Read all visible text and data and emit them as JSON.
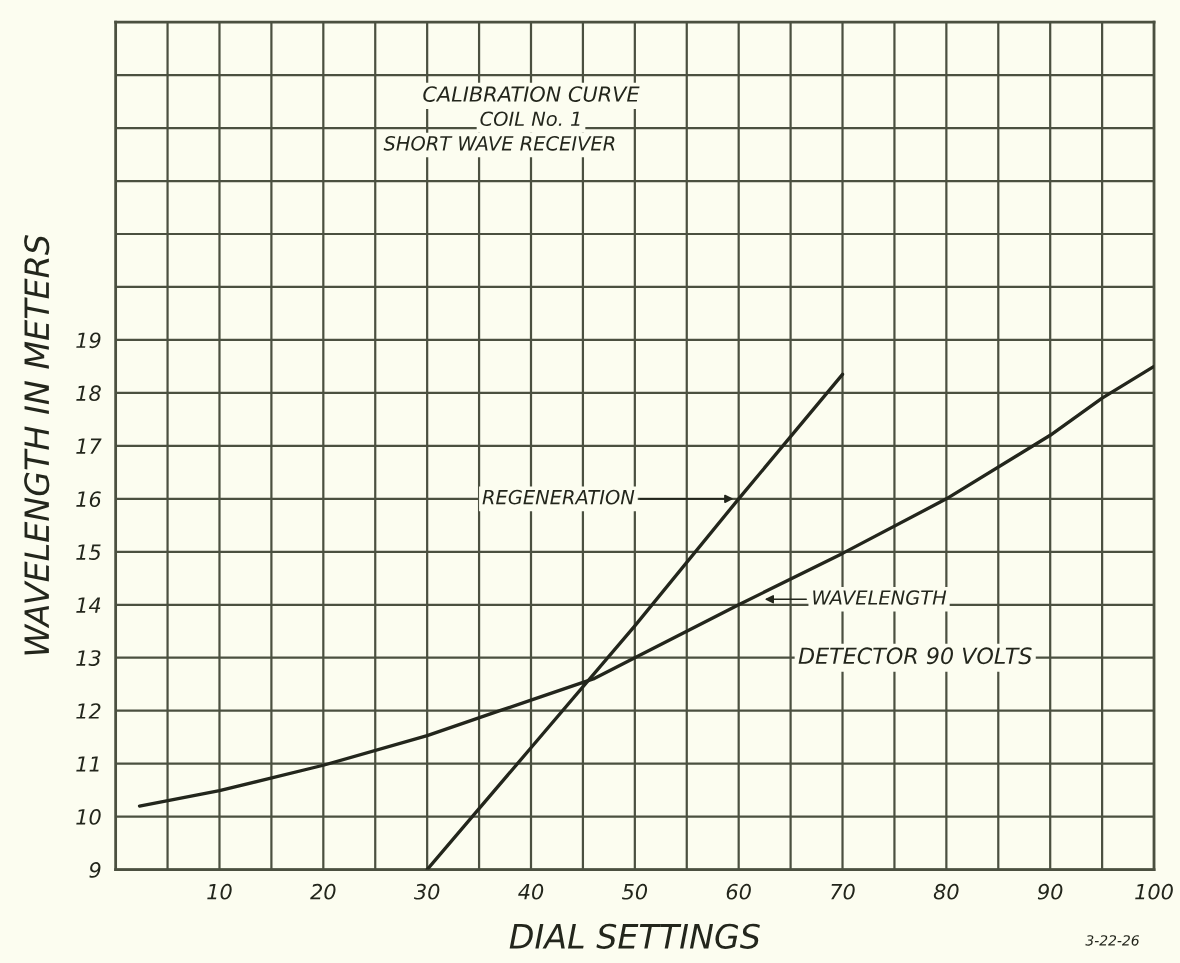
{
  "chart_data": {
    "type": "line",
    "title": "CALIBRATION CURVE",
    "subtitle": "COIL No. 1",
    "xlabel": "DIAL SETTINGS",
    "ylabel": "WAVELENGTH IN METERS",
    "series": [
      {
        "color": "#23261c",
        "x": [
          2.3,
          10,
          20,
          30,
          37,
          40,
          46,
          50,
          60,
          70,
          80,
          90,
          95,
          100
        ],
        "values": [
          10.2,
          10.49,
          10.97,
          11.53,
          12.0,
          12.2,
          12.6,
          13.0,
          14.0,
          14.97,
          16.0,
          17.2,
          17.9,
          18.5
        ]
      },
      {
        "color": "#23261c",
        "x": [
          30,
          35,
          40,
          50,
          60,
          70
        ],
        "values": [
          9,
          10.15,
          11.3,
          13.6,
          16.0,
          18.35
        ]
      }
    ],
    "xlim": [
      0,
      100
    ],
    "ylim": [
      9,
      25
    ],
    "xticks": [
      {
        "value": 5,
        "label": null
      },
      10,
      {
        "value": 15,
        "label": null
      },
      20,
      {
        "value": 25,
        "label": null
      },
      30,
      {
        "value": 35,
        "label": null
      },
      40,
      {
        "value": 45,
        "label": null
      },
      50,
      {
        "value": 55,
        "label": null
      },
      60,
      {
        "value": 65,
        "label": null
      },
      70,
      {
        "value": 75,
        "label": null
      },
      80,
      {
        "value": 85,
        "label": null
      },
      90,
      {
        "value": 95,
        "label": null
      },
      100
    ],
    "yticks": [
      9,
      10,
      11,
      12,
      13,
      14,
      15,
      16,
      17,
      18,
      19,
      {
        "value": 20,
        "label": null
      },
      {
        "value": 21,
        "label": null
      },
      {
        "value": 22,
        "label": null
      },
      {
        "value": 23,
        "label": null
      },
      {
        "value": 24,
        "label": null
      }
    ],
    "grid": true,
    "marker": "none",
    "line_style": "solid",
    "annotations": [
      "REGENERATION",
      "WAVELENGTH",
      "DETECTOR 90 VOLTS",
      "SHORT WAVE RECEIVER",
      "3-22-26"
    ]
  }
}
